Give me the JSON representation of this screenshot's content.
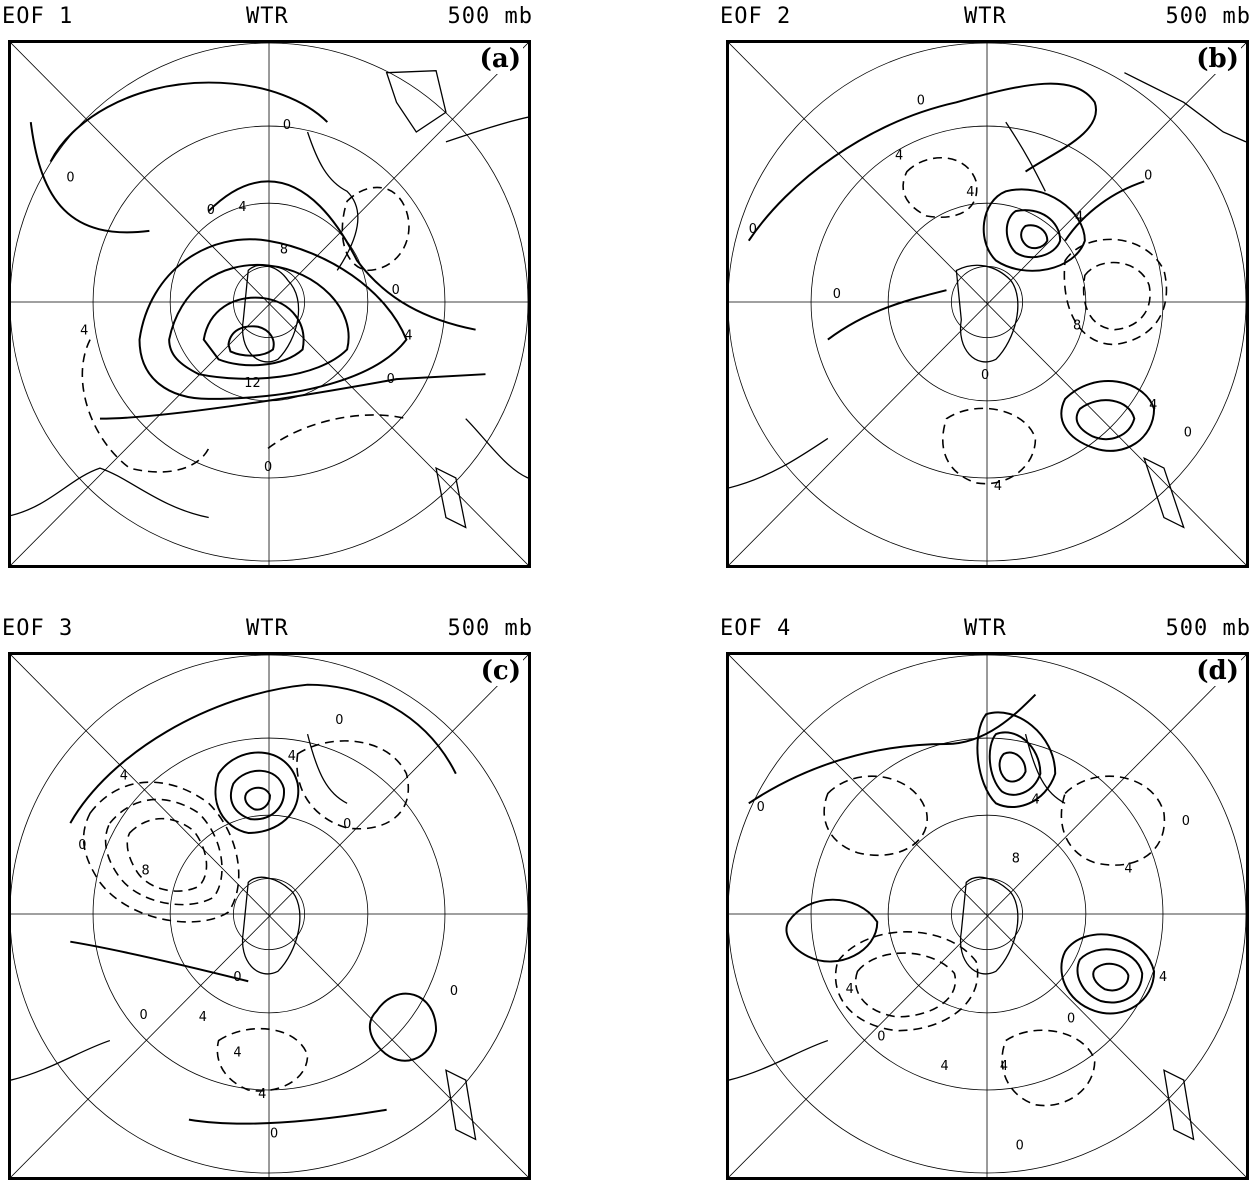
{
  "panels": [
    {
      "eof": "EOF 1",
      "season": "WTR",
      "level": "500 mb",
      "label": "(a)",
      "contour_labels": [
        "0",
        "0",
        "0",
        "4",
        "4",
        "8",
        "12",
        "0",
        "0",
        "0",
        "4"
      ]
    },
    {
      "eof": "EOF 2",
      "season": "WTR",
      "level": "500 mb",
      "label": "(b)",
      "contour_labels": [
        "0",
        "0",
        "0",
        "4",
        "4",
        "4",
        "8",
        "0",
        "0",
        "4",
        "4",
        "0"
      ]
    },
    {
      "eof": "EOF 3",
      "season": "WTR",
      "level": "500 mb",
      "label": "(c)",
      "contour_labels": [
        "0",
        "4",
        "8",
        "0",
        "0",
        "4",
        "0",
        "0",
        "4",
        "4",
        "0",
        "0",
        "4"
      ]
    },
    {
      "eof": "EOF 4",
      "season": "WTR",
      "level": "500 mb",
      "label": "(d)",
      "contour_labels": [
        "0",
        "0",
        "4",
        "4",
        "8",
        "4",
        "4",
        "0",
        "0",
        "4",
        "0",
        "4"
      ]
    }
  ]
}
